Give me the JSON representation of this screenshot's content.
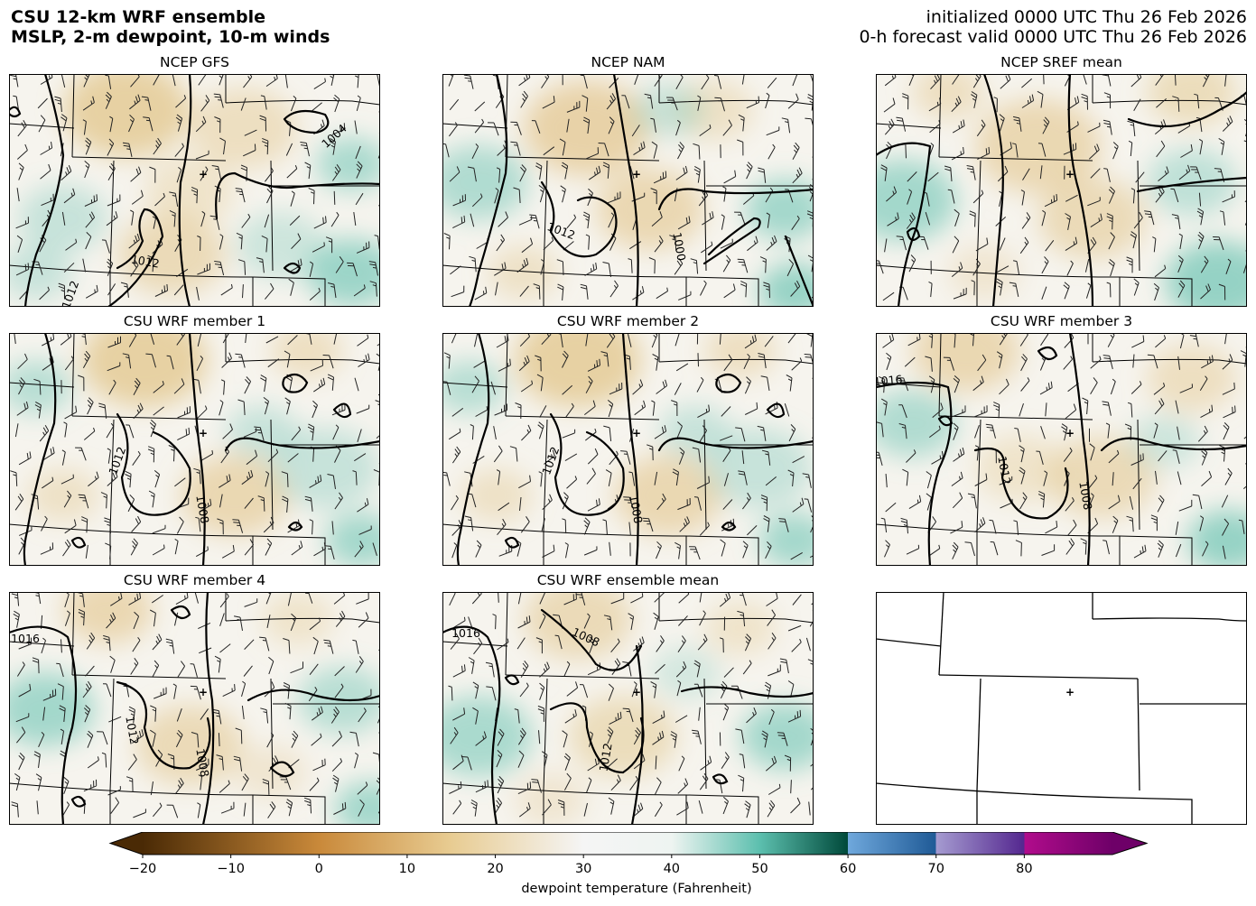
{
  "header": {
    "title_line1": "CSU 12-km WRF ensemble",
    "title_line2": "MSLP, 2-m dewpoint, 10-m winds",
    "init_line": "initialized 0000 UTC Thu 26 Feb 2026",
    "valid_line": "0-h forecast valid 0000 UTC Thu 26 Feb 2026"
  },
  "panels": [
    {
      "title": "NCEP GFS",
      "variant": 0,
      "isobar_labels": [
        "1004",
        "1012",
        "1012"
      ]
    },
    {
      "title": "NCEP NAM",
      "variant": 1,
      "isobar_labels": [
        "1012",
        "1000"
      ]
    },
    {
      "title": "NCEP SREF mean",
      "variant": 2,
      "isobar_labels": []
    },
    {
      "title": "CSU WRF member 1",
      "variant": 3,
      "isobar_labels": [
        "1012",
        "1008"
      ]
    },
    {
      "title": "CSU WRF member 2",
      "variant": 4,
      "isobar_labels": [
        "1012",
        "1008"
      ]
    },
    {
      "title": "CSU WRF member 3",
      "variant": 5,
      "isobar_labels": [
        "1016",
        "1012",
        "1008"
      ]
    },
    {
      "title": "CSU WRF member 4",
      "variant": 6,
      "isobar_labels": [
        "1016",
        "1012",
        "1008"
      ]
    },
    {
      "title": "CSU WRF ensemble mean",
      "variant": 7,
      "isobar_labels": [
        "1016",
        "1008",
        "1012"
      ]
    },
    {
      "title": "",
      "variant": 8,
      "isobar_labels": []
    }
  ],
  "colorbar": {
    "label": "dewpoint temperature (Fahrenheit)",
    "ticks": [
      "−20",
      "−10",
      "0",
      "10",
      "20",
      "30",
      "40",
      "50",
      "60",
      "70",
      "80"
    ],
    "tick_values": [
      -20,
      -10,
      0,
      10,
      20,
      30,
      40,
      50,
      60,
      70,
      80
    ],
    "range": [
      -20,
      90
    ],
    "extend": "both",
    "colors": {
      "brown_dark": "#4a2a05",
      "tan": "#e8cc92",
      "white": "#f5f5f5",
      "teal": "#5cbfae",
      "teal_dark": "#00493a",
      "blue_light": "#6fa8dc",
      "blue_dark": "#1f5a96",
      "purple_light": "#a59bd0",
      "purple_dark": "#54278f",
      "magenta": "#b10c8c",
      "magenta_dark": "#6e0068"
    }
  },
  "station_marker": "+"
}
